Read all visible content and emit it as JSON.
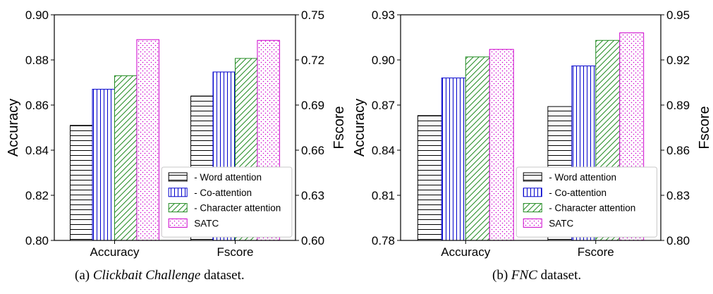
{
  "figure": {
    "panels": [
      {
        "caption_prefix": "(a)",
        "caption_dataset": "Clickbait Challenge",
        "caption_suffix": "dataset."
      },
      {
        "caption_prefix": "(b)",
        "caption_dataset": "FNC",
        "caption_suffix": "dataset."
      }
    ]
  },
  "colors": {
    "word_attention": "#000000",
    "co_attention": "#0000cc",
    "character_attention": "#228b22",
    "satc": "#cc00cc"
  },
  "chart_data": [
    {
      "type": "bar",
      "categories": [
        "Accuracy",
        "Fscore"
      ],
      "ylabel": "Accuracy",
      "y2label": "Fscore",
      "ylim": [
        0.8,
        0.9
      ],
      "yticks": [
        "0.80",
        "0.82",
        "0.84",
        "0.86",
        "0.88",
        "0.90"
      ],
      "y2lim": [
        0.6,
        0.75
      ],
      "y2ticks": [
        "0.60",
        "0.63",
        "0.66",
        "0.69",
        "0.72",
        "0.75"
      ],
      "legend_position": "lower-right",
      "series": [
        {
          "name": "- Word attention",
          "values": [
            0.851,
            0.696
          ],
          "pattern": "horizontal"
        },
        {
          "name": "- Co-attention",
          "values": [
            0.867,
            0.712
          ],
          "pattern": "vertical"
        },
        {
          "name": "- Character attention",
          "values": [
            0.873,
            0.721
          ],
          "pattern": "diagonal"
        },
        {
          "name": "SATC",
          "values": [
            0.889,
            0.733
          ],
          "pattern": "dots"
        }
      ]
    },
    {
      "type": "bar",
      "categories": [
        "Accuracy",
        "Fscore"
      ],
      "ylabel": "Accuracy",
      "y2label": "Fscore",
      "ylim": [
        0.78,
        0.93
      ],
      "yticks": [
        "0.78",
        "0.81",
        "0.84",
        "0.87",
        "0.90",
        "0.93"
      ],
      "y2lim": [
        0.8,
        0.95
      ],
      "y2ticks": [
        "0.80",
        "0.83",
        "0.86",
        "0.89",
        "0.92",
        "0.95"
      ],
      "legend_position": "lower-right",
      "series": [
        {
          "name": "- Word attention",
          "values": [
            0.863,
            0.889
          ],
          "pattern": "horizontal"
        },
        {
          "name": "- Co-attention",
          "values": [
            0.888,
            0.916
          ],
          "pattern": "vertical"
        },
        {
          "name": "- Character attention",
          "values": [
            0.902,
            0.933
          ],
          "pattern": "diagonal"
        },
        {
          "name": "SATC",
          "values": [
            0.907,
            0.938
          ],
          "pattern": "dots"
        }
      ]
    }
  ]
}
